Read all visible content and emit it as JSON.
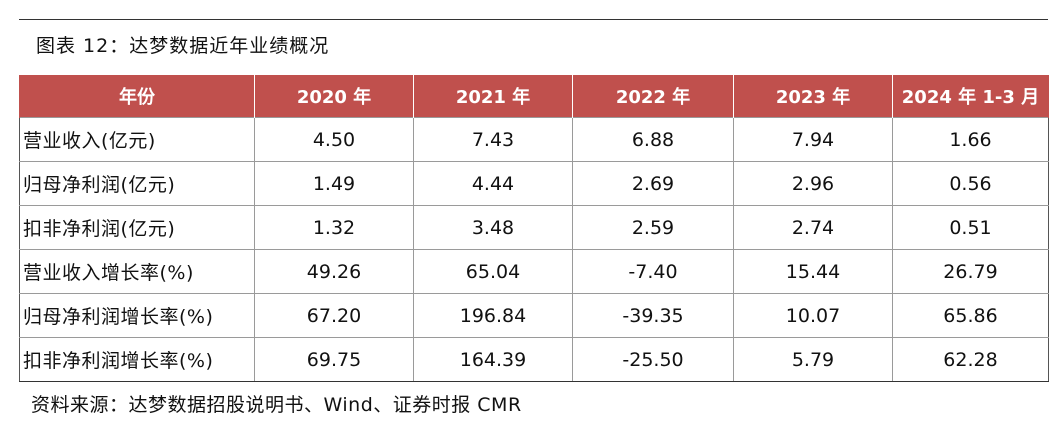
{
  "caption": "图表 12：达梦数据近年业绩概况",
  "table": {
    "headers": [
      "年份",
      "2020 年",
      "2021 年",
      "2022 年",
      "2023 年",
      "2024 年 1-3 月"
    ],
    "rows": [
      [
        "营业收入(亿元)",
        "4.50",
        "7.43",
        "6.88",
        "7.94",
        "1.66"
      ],
      [
        "归母净利润(亿元)",
        "1.49",
        "4.44",
        "2.69",
        "2.96",
        "0.56"
      ],
      [
        "扣非净利润(亿元)",
        "1.32",
        "3.48",
        "2.59",
        "2.74",
        "0.51"
      ],
      [
        "营业收入增长率(%)",
        "49.26",
        "65.04",
        "-7.40",
        "15.44",
        "26.79"
      ],
      [
        "归母净利润增长率(%)",
        "67.20",
        "196.84",
        "-39.35",
        "10.07",
        "65.86"
      ],
      [
        "扣非净利润增长率(%)",
        "69.75",
        "164.39",
        "-25.50",
        "5.79",
        "62.28"
      ]
    ]
  },
  "source": "资料来源：达梦数据招股说明书、Wind、证券时报 CMR",
  "colors": {
    "header_bg": "#c0504d",
    "header_text": "#ffffff"
  }
}
